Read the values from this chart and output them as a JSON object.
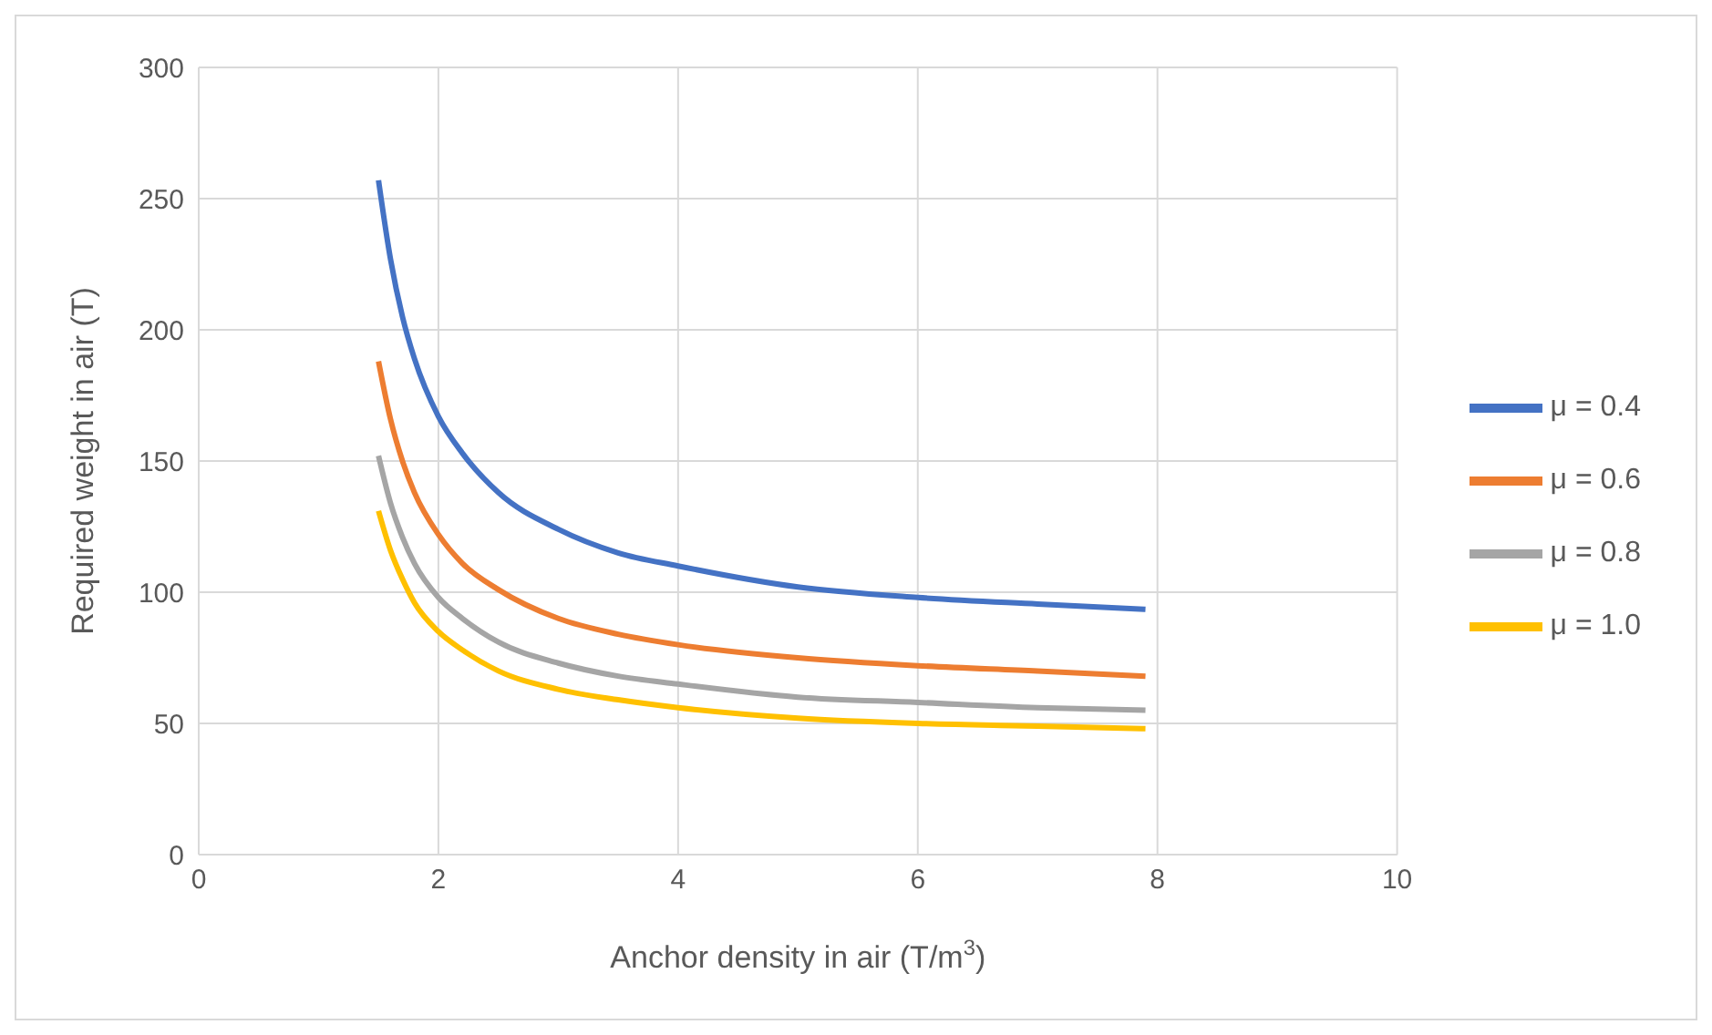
{
  "chart_data": {
    "type": "line",
    "xlabel": "Anchor density in air (T/m$^{3}$)",
    "ylabel": "Required weight in air (T)",
    "x": [
      1.5,
      1.6,
      1.7,
      1.8,
      2,
      2.2,
      2.5,
      3,
      3.5,
      4,
      5,
      6,
      7,
      7.9
    ],
    "series": [
      {
        "name": "μ = 0.4",
        "color": "#4472c4",
        "values": [
          257,
          227,
          205,
          189,
          167,
          153,
          138,
          124,
          115,
          110,
          102,
          98,
          95.5,
          93.5
        ]
      },
      {
        "name": "μ = 0.6",
        "color": "#ed7d31",
        "values": [
          188,
          166,
          150,
          138,
          122,
          111,
          101,
          90,
          84,
          80,
          75,
          72,
          70,
          68
        ]
      },
      {
        "name": "μ = 0.8",
        "color": "#a5a5a5",
        "values": [
          152,
          134,
          121,
          111,
          98,
          90,
          81,
          73,
          68,
          65,
          60,
          58,
          56,
          55
        ]
      },
      {
        "name": "μ = 1.0",
        "color": "#ffc000",
        "values": [
          131,
          116,
          105,
          96,
          85,
          78,
          70,
          63,
          59,
          56,
          52,
          50,
          49,
          48
        ]
      }
    ],
    "xlim": [
      0,
      10
    ],
    "xticks": [
      0,
      2,
      4,
      6,
      8,
      10
    ],
    "ylim": [
      0,
      300
    ],
    "yticks": [
      0,
      50,
      100,
      150,
      200,
      250,
      300
    ],
    "grid": true,
    "legend": "right",
    "marker": "none",
    "line_style": "solid"
  }
}
